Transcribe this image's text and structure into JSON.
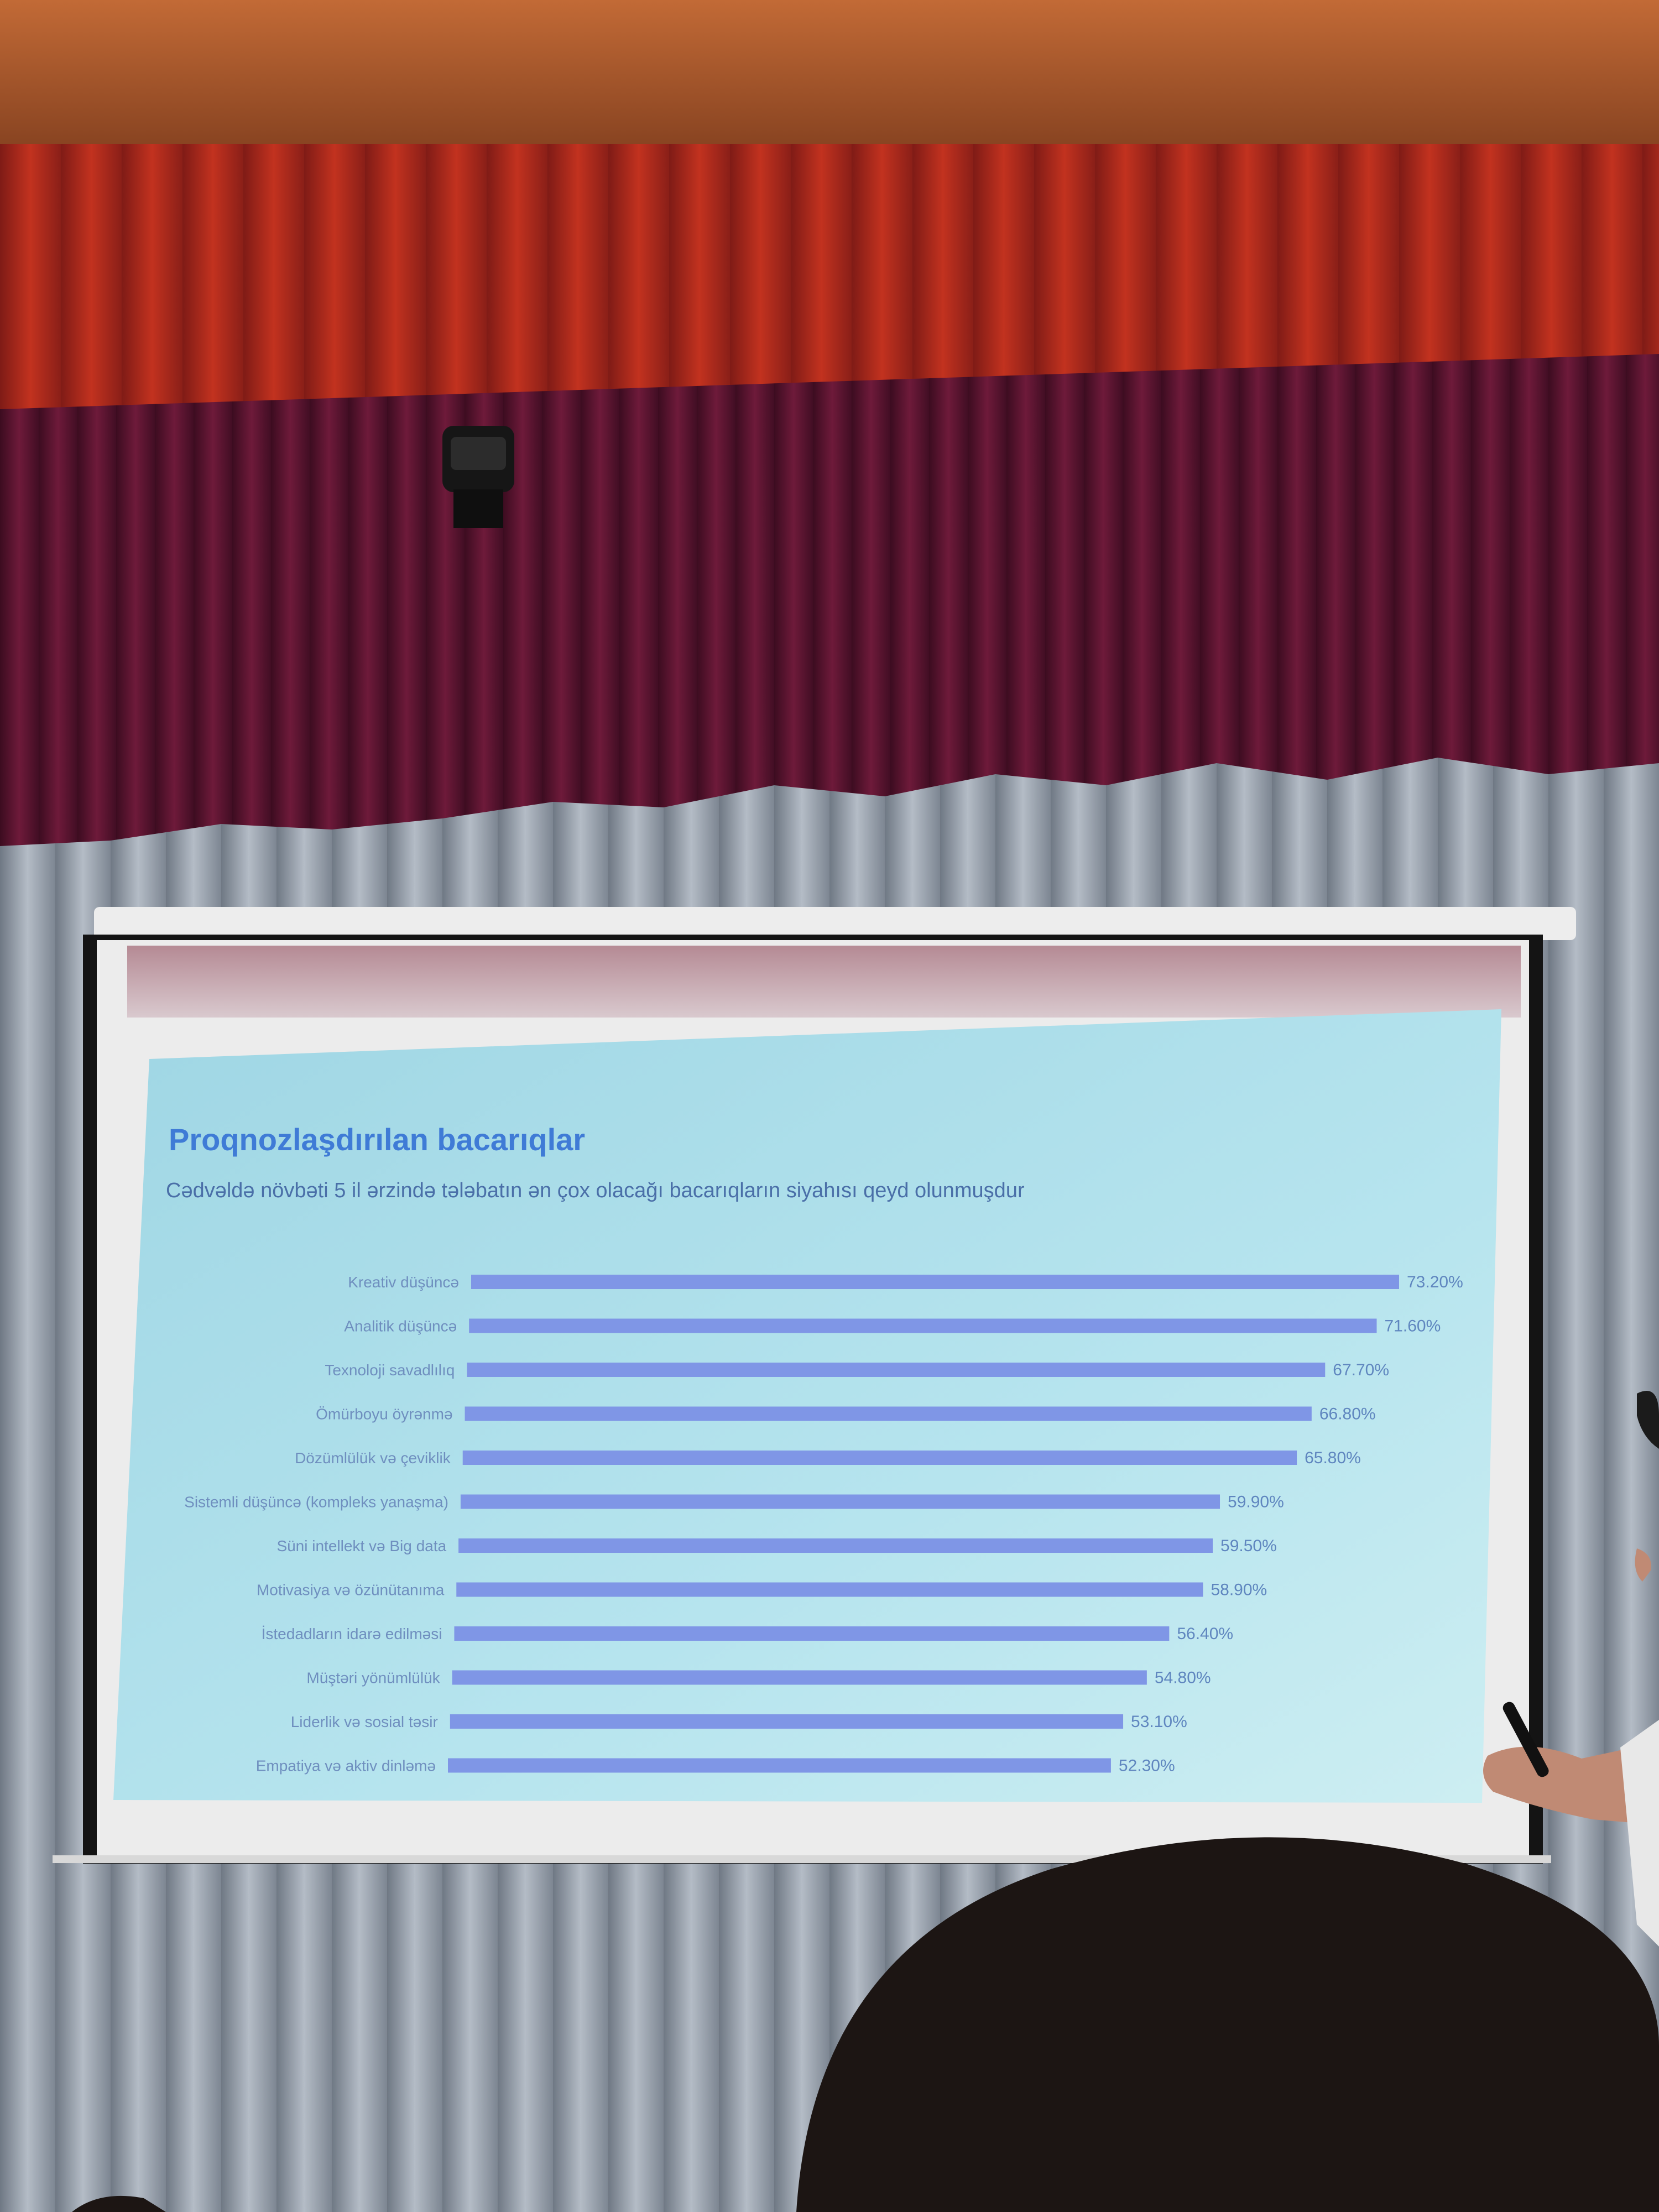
{
  "colors": {
    "ceiling": "#a85a2c",
    "curtain_red": "#b3281f",
    "valance": "#5c1430",
    "back_curtain": "#8f99a6",
    "screen_frame": "#141414",
    "screen_border": "#ececec",
    "slide_bg": "#a9dde8",
    "bar": "#7f96e6",
    "title": "#3f7bd6",
    "subtitle": "#4a6fa8",
    "label": "#6f8fbf",
    "audience_head": "#1c1513",
    "presenter_skin": "#c08a74"
  },
  "icons": {
    "speaker": "speaker-icon",
    "remote": "presentation-remote-icon"
  },
  "chart_data": {
    "type": "bar",
    "orientation": "horizontal",
    "title": "Proqnozlaşdırılan bacarıqlar",
    "subtitle": "Cədvəldə növbəti 5 il ərzində tələbatın ən çox olacağı bacarıqların siyahısı qeyd olunmuşdur",
    "categories": [
      "Kreativ düşüncə",
      "Analitik düşüncə",
      "Texnoloji savadlılıq",
      "Ömürboyu öyrənmə",
      "Dözümlülük və çeviklik",
      "Sistemli düşüncə (kompleks yanaşma)",
      "Süni intellekt və Big data",
      "Motivasiya və özünütanıma",
      "İstedadların idarə edilməsi",
      "Müştəri yönümlülük",
      "Liderlik və sosial təsir",
      "Empatiya və aktiv dinləmə"
    ],
    "values": [
      73.2,
      71.6,
      67.7,
      66.8,
      65.8,
      59.9,
      59.5,
      58.9,
      56.4,
      54.8,
      53.1,
      52.3
    ],
    "value_labels": [
      "73.20%",
      "71.60%",
      "67.70%",
      "66.80%",
      "65.80%",
      "59.90%",
      "59.50%",
      "58.90%",
      "56.40%",
      "54.80%",
      "53.10%",
      "52.30%"
    ],
    "xlim": [
      0,
      73.2
    ],
    "grid": false,
    "legend": "none"
  }
}
